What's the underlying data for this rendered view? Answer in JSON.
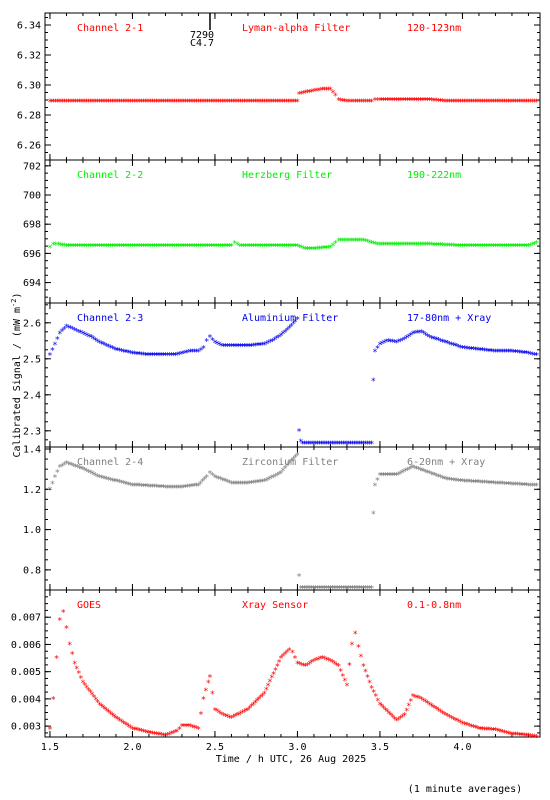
{
  "figure": {
    "ylabel": "Calibrated Signal  / (mW m",
    "ylabel_sup": "-2",
    "ylabel_end": ")",
    "xlabel": "Time / h UTC, 26 Aug 2025",
    "footnote": "(1 minute averages)",
    "event_marker": {
      "x": 2.47,
      "labels": [
        "7290",
        "C4.7"
      ]
    }
  },
  "chart_data": [
    {
      "type": "scatter",
      "channel": "Channel 2-1",
      "filter": "Lyman-alpha Filter",
      "band": "120-123nm",
      "color": "#ff0000",
      "ylim": [
        6.25,
        6.348
      ],
      "yticks": [
        6.26,
        6.28,
        6.3,
        6.32,
        6.34
      ],
      "ytick_labels": [
        "6.26",
        "6.28",
        "6.30",
        "6.32",
        "6.34"
      ],
      "x": [
        1.5,
        2.0,
        2.5,
        3.0,
        3.01,
        3.05,
        3.1,
        3.15,
        3.2,
        3.23,
        3.25,
        3.3,
        3.35,
        3.4,
        3.45,
        3.47,
        3.5,
        3.6,
        3.7,
        3.8,
        3.9,
        4.0,
        4.2,
        4.4,
        4.45
      ],
      "y": [
        6.289,
        6.289,
        6.289,
        6.289,
        6.294,
        6.295,
        6.296,
        6.297,
        6.297,
        6.293,
        6.29,
        6.289,
        6.289,
        6.289,
        6.289,
        6.29,
        6.29,
        6.29,
        6.29,
        6.29,
        6.289,
        6.289,
        6.289,
        6.289,
        6.289
      ]
    },
    {
      "type": "scatter",
      "channel": "Channel 2-2",
      "filter": "Herzberg Filter",
      "band": "190-222nm",
      "color": "#00ee00",
      "ylim": [
        692.6,
        702.4
      ],
      "yticks": [
        694,
        696,
        698,
        700,
        702
      ],
      "ytick_labels": [
        "694",
        "696",
        "698",
        "700",
        "702"
      ],
      "x": [
        1.5,
        1.52,
        1.55,
        1.6,
        1.8,
        2.0,
        2.2,
        2.4,
        2.6,
        2.62,
        2.65,
        2.7,
        2.9,
        3.0,
        3.05,
        3.1,
        3.2,
        3.23,
        3.25,
        3.3,
        3.35,
        3.4,
        3.45,
        3.5,
        3.6,
        3.8,
        4.0,
        4.2,
        4.4,
        4.45
      ],
      "y": [
        696.4,
        696.6,
        696.6,
        696.5,
        696.5,
        696.5,
        696.5,
        696.5,
        696.5,
        696.7,
        696.5,
        696.5,
        696.5,
        696.5,
        696.3,
        696.3,
        696.4,
        696.7,
        696.9,
        696.9,
        696.9,
        696.9,
        696.7,
        696.6,
        696.6,
        696.6,
        696.5,
        696.5,
        696.5,
        696.7
      ]
    },
    {
      "type": "scatter",
      "channel": "Channel 2-3",
      "filter": "Aluminium Filter",
      "band": "17-80nm + Xray",
      "color": "#0000ee",
      "ylim": [
        2.255,
        2.655
      ],
      "yticks": [
        2.3,
        2.4,
        2.5,
        2.6
      ],
      "ytick_labels": [
        "2.3",
        "2.4",
        "2.5",
        "2.6"
      ],
      "x": [
        1.5,
        1.53,
        1.56,
        1.6,
        1.65,
        1.7,
        1.75,
        1.8,
        1.9,
        2.0,
        2.1,
        2.2,
        2.25,
        2.3,
        2.35,
        2.4,
        2.43,
        2.45,
        2.47,
        2.5,
        2.55,
        2.6,
        2.7,
        2.8,
        2.85,
        2.9,
        2.95,
        3.0,
        3.01,
        3.02,
        3.03,
        3.1,
        3.2,
        3.3,
        3.4,
        3.45,
        3.46,
        3.47,
        3.5,
        3.55,
        3.6,
        3.65,
        3.7,
        3.75,
        3.8,
        3.9,
        4.0,
        4.1,
        4.2,
        4.3,
        4.4,
        4.45
      ],
      "y": [
        2.51,
        2.54,
        2.57,
        2.59,
        2.58,
        2.57,
        2.56,
        2.545,
        2.525,
        2.515,
        2.51,
        2.51,
        2.51,
        2.515,
        2.52,
        2.52,
        2.53,
        2.55,
        2.56,
        2.545,
        2.535,
        2.535,
        2.535,
        2.54,
        2.55,
        2.565,
        2.585,
        2.61,
        2.3,
        2.27,
        2.265,
        2.265,
        2.265,
        2.265,
        2.265,
        2.265,
        2.44,
        2.52,
        2.54,
        2.55,
        2.545,
        2.555,
        2.57,
        2.575,
        2.56,
        2.545,
        2.53,
        2.525,
        2.52,
        2.52,
        2.515,
        2.51
      ]
    },
    {
      "type": "scatter",
      "channel": "Channel 2-4",
      "filter": "Zirconium Filter",
      "band": "6-20nm + Xray",
      "color": "#808080",
      "ylim": [
        0.7,
        1.41
      ],
      "yticks": [
        0.8,
        1.0,
        1.2,
        1.4
      ],
      "ytick_labels": [
        "0.8",
        "1.0",
        "1.2",
        "1.4"
      ],
      "x": [
        1.5,
        1.53,
        1.56,
        1.6,
        1.7,
        1.8,
        1.9,
        2.0,
        2.2,
        2.3,
        2.4,
        2.45,
        2.47,
        2.5,
        2.6,
        2.7,
        2.8,
        2.9,
        2.95,
        3.0,
        3.01,
        3.02,
        3.03,
        3.2,
        3.4,
        3.45,
        3.46,
        3.47,
        3.5,
        3.6,
        3.7,
        3.8,
        3.9,
        4.0,
        4.2,
        4.4,
        4.45
      ],
      "y": [
        1.2,
        1.26,
        1.31,
        1.33,
        1.3,
        1.26,
        1.24,
        1.22,
        1.21,
        1.21,
        1.22,
        1.26,
        1.28,
        1.26,
        1.23,
        1.23,
        1.24,
        1.28,
        1.33,
        1.37,
        0.77,
        0.71,
        0.71,
        0.71,
        0.71,
        0.71,
        1.08,
        1.22,
        1.27,
        1.27,
        1.31,
        1.28,
        1.25,
        1.24,
        1.23,
        1.22,
        1.22
      ]
    },
    {
      "type": "scatter",
      "channel": "GOES",
      "filter": "Xray Sensor",
      "band": "0.1-0.8nm",
      "color": "#ff0000",
      "ylim": [
        0.0026,
        0.008
      ],
      "yticks": [
        0.003,
        0.004,
        0.005,
        0.006,
        0.007
      ],
      "ytick_labels": [
        "0.003",
        "0.004",
        "0.005",
        "0.006",
        "0.007"
      ],
      "x": [
        1.5,
        1.52,
        1.54,
        1.56,
        1.58,
        1.6,
        1.62,
        1.65,
        1.7,
        1.8,
        1.9,
        2.0,
        2.1,
        2.2,
        2.27,
        2.3,
        2.35,
        2.4,
        2.43,
        2.46,
        2.47,
        2.5,
        2.55,
        2.6,
        2.7,
        2.8,
        2.9,
        2.95,
        2.97,
        3.0,
        3.05,
        3.1,
        3.15,
        3.2,
        3.25,
        3.3,
        3.33,
        3.35,
        3.37,
        3.4,
        3.45,
        3.5,
        3.6,
        3.65,
        3.7,
        3.75,
        3.8,
        3.9,
        4.0,
        4.1,
        4.2,
        4.3,
        4.4,
        4.45
      ],
      "y": [
        0.0029,
        0.004,
        0.0055,
        0.0069,
        0.0072,
        0.0066,
        0.006,
        0.0053,
        0.0046,
        0.0038,
        0.0033,
        0.0029,
        0.00275,
        0.00265,
        0.0028,
        0.003,
        0.003,
        0.0029,
        0.004,
        0.0046,
        0.0048,
        0.0036,
        0.0034,
        0.0033,
        0.0036,
        0.0042,
        0.0055,
        0.0058,
        0.0057,
        0.0053,
        0.0052,
        0.0054,
        0.0055,
        0.0054,
        0.0052,
        0.0045,
        0.006,
        0.0064,
        0.0059,
        0.0052,
        0.0044,
        0.0038,
        0.0032,
        0.0034,
        0.0041,
        0.004,
        0.0038,
        0.0034,
        0.0031,
        0.0029,
        0.00285,
        0.0027,
        0.00265,
        0.0026
      ]
    }
  ],
  "x_axis": {
    "xlim": [
      1.47,
      4.47
    ],
    "ticks": [
      1.5,
      2.0,
      2.5,
      3.0,
      3.5,
      4.0
    ],
    "tick_labels": [
      "1.5",
      "2.0",
      "2.5",
      "3.0",
      "3.5",
      "4.0"
    ]
  }
}
